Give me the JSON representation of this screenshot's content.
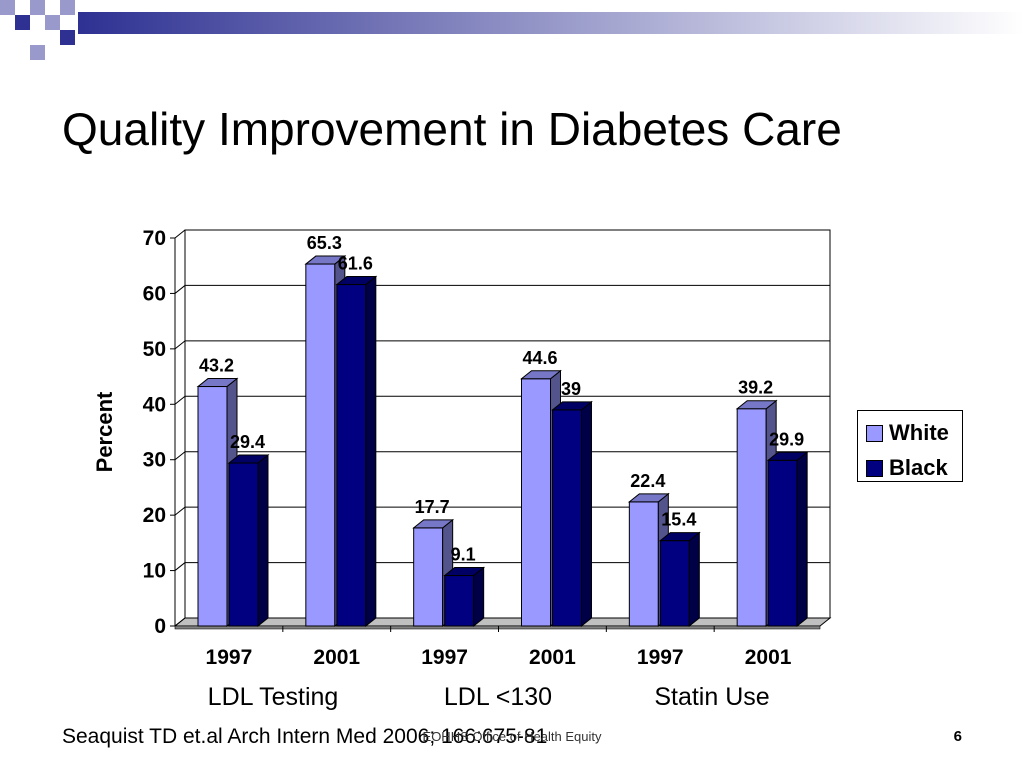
{
  "slide": {
    "title": "Quality Improvement in Diabetes Care",
    "citation": "Seaquist TD et.al Arch Intern Med 2006; 166:675-81",
    "footer_center": "EOHHS Office of Health Equity",
    "page_number": "6"
  },
  "colors": {
    "white_series": "#9999ff",
    "black_series": "#000080",
    "deco_dark": "#2e3192",
    "deco_light": "#9999cc"
  },
  "chart_data": {
    "type": "bar",
    "categories": [
      "1997",
      "2001",
      "1997",
      "2001",
      "1997",
      "2001"
    ],
    "groups": [
      "LDL Testing",
      "LDL <130",
      "Statin Use"
    ],
    "series": [
      {
        "name": "White",
        "values": [
          43.2,
          65.3,
          17.7,
          44.6,
          22.4,
          39.2
        ]
      },
      {
        "name": "Black",
        "values": [
          29.4,
          61.6,
          9.1,
          39,
          15.4,
          29.9
        ]
      }
    ],
    "value_labels": {
      "White": [
        "43.2",
        "65.3",
        "17.7",
        "44.6",
        "22.4",
        "39.2"
      ],
      "Black": [
        "29.4",
        "61.6",
        "9.1",
        "39",
        "15.4",
        "29.9"
      ]
    },
    "ylabel": "Percent",
    "ylim": [
      0,
      70
    ],
    "yticks": [
      "0",
      "10",
      "20",
      "30",
      "40",
      "50",
      "60",
      "70"
    ],
    "grid": true,
    "legend_position": "right",
    "style": "3d-bar"
  }
}
